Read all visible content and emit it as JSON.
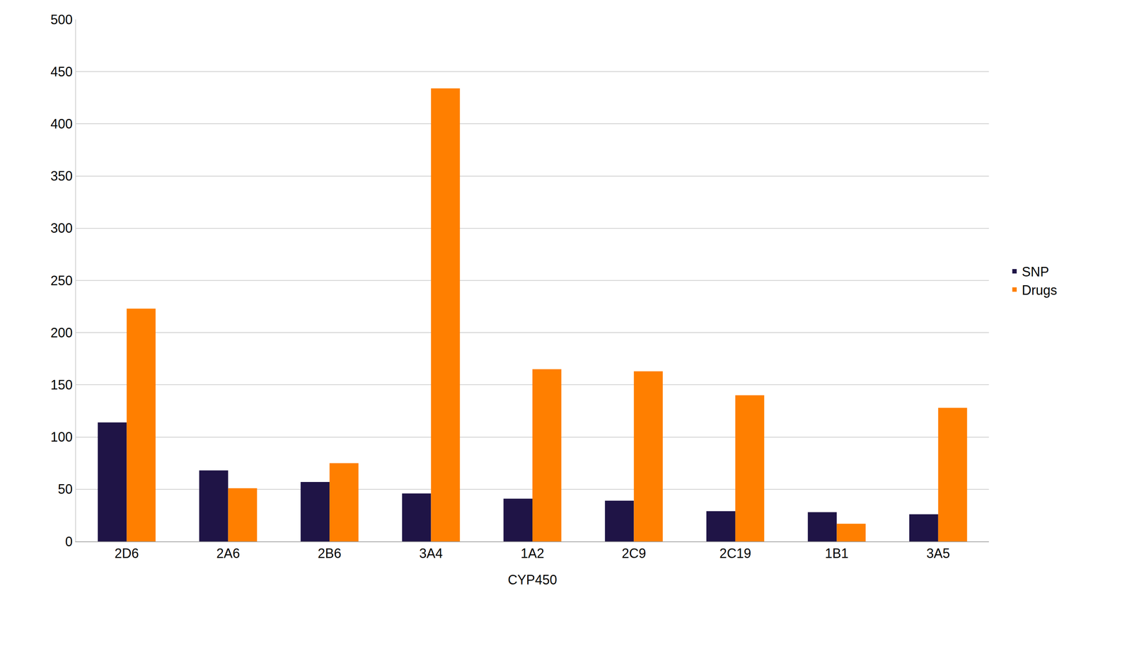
{
  "chart_data": {
    "type": "bar",
    "x_label": "CYP450",
    "categories": [
      "2D6",
      "2A6",
      "2B6",
      "3A4",
      "1A2",
      "2C9",
      "2C19",
      "1B1",
      "3A5"
    ],
    "series": [
      {
        "name": "SNP",
        "color": "#1f1446",
        "values": [
          114,
          68,
          57,
          46,
          41,
          39,
          29,
          28,
          26
        ]
      },
      {
        "name": "Drugs",
        "color": "#ff7f00",
        "values": [
          223,
          51,
          75,
          434,
          165,
          163,
          140,
          17,
          128
        ]
      }
    ],
    "ylim": [
      0,
      500
    ],
    "yticks": [
      0,
      50,
      100,
      150,
      200,
      250,
      300,
      350,
      400,
      450,
      500
    ],
    "grid": true,
    "legend": "right"
  }
}
